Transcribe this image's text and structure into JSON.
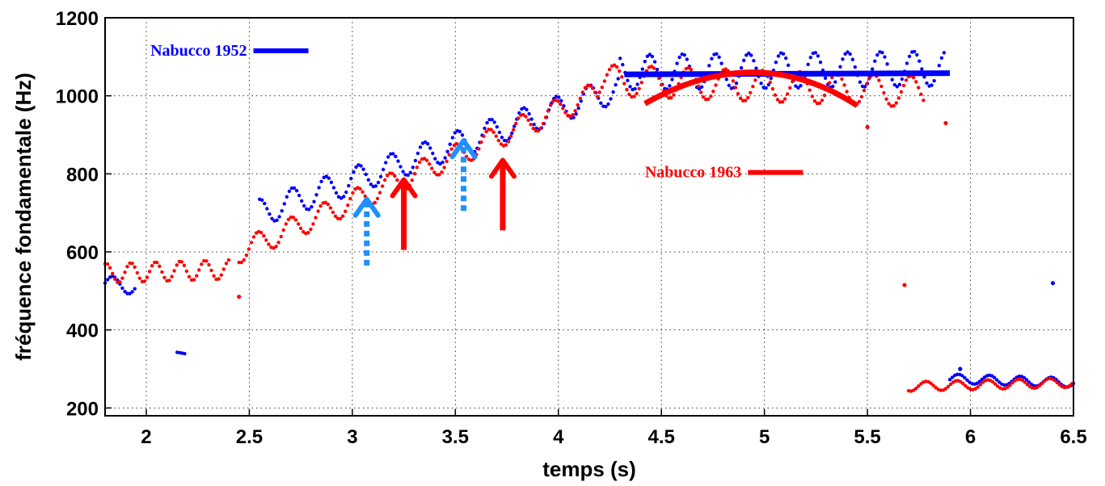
{
  "chart_data": {
    "type": "scatter",
    "title": "",
    "xlabel": "temps (s)",
    "ylabel": "fréquence fondamentale (Hz)",
    "xlim": [
      1.8,
      6.5
    ],
    "ylim": [
      180,
      1200
    ],
    "xticks": [
      2,
      2.5,
      3,
      3.5,
      4,
      4.5,
      5,
      5.5,
      6,
      6.5
    ],
    "xtick_labels": [
      "2",
      "2.5",
      "3",
      "3.5",
      "4",
      "4.5",
      "5",
      "5.5",
      "6",
      "6.5"
    ],
    "yticks": [
      200,
      400,
      600,
      800,
      1000,
      1200
    ],
    "ytick_labels": [
      "200",
      "400",
      "600",
      "800",
      "1000",
      "1200"
    ],
    "grid": true,
    "series": [
      {
        "name": "Nabucco 1952",
        "color": "#0000ff",
        "segments": [
          {
            "x0": 1.8,
            "x1": 1.95,
            "base_start": 520,
            "base_end": 510,
            "amp": 20,
            "period": 0.15
          },
          {
            "x0": 2.15,
            "x1": 2.19,
            "base_start": 340,
            "base_end": 338,
            "amp": 3,
            "period": 0.3
          },
          {
            "x0": 2.55,
            "x1": 4.3,
            "base_start": 700,
            "base_end": 1020,
            "amp": 35,
            "period": 0.16
          },
          {
            "x0": 4.3,
            "x1": 5.88,
            "base_start": 1060,
            "base_end": 1070,
            "amp": 45,
            "period": 0.16
          },
          {
            "x0": 5.9,
            "x1": 6.5,
            "base_start": 275,
            "base_end": 265,
            "amp": 12,
            "period": 0.15
          }
        ],
        "trend": {
          "type": "line",
          "x": [
            4.32,
            5.9
          ],
          "y": [
            1055,
            1058
          ]
        }
      },
      {
        "name": "Nabucco 1963",
        "color": "#ff0000",
        "segments": [
          {
            "x0": 1.8,
            "x1": 2.4,
            "base_start": 545,
            "base_end": 555,
            "amp": 25,
            "period": 0.12
          },
          {
            "x0": 2.45,
            "x1": 4.2,
            "base_start": 600,
            "base_end": 1010,
            "amp": 30,
            "period": 0.16
          },
          {
            "x0": 4.2,
            "x1": 5.78,
            "base_start": 1040,
            "base_end": 1010,
            "amp": 40,
            "period": 0.18
          },
          {
            "x0": 5.7,
            "x1": 6.5,
            "base_start": 255,
            "base_end": 265,
            "amp": 12,
            "period": 0.15
          }
        ],
        "trend": {
          "type": "curve",
          "x": [
            4.42,
            4.95,
            5.45
          ],
          "y": [
            980,
            1060,
            975
          ]
        }
      }
    ],
    "outliers": [
      {
        "x": 5.68,
        "y": 515,
        "series": "Nabucco 1963"
      },
      {
        "x": 6.4,
        "y": 520,
        "series": "Nabucco 1952"
      },
      {
        "x": 5.88,
        "y": 930,
        "series": "Nabucco 1963"
      },
      {
        "x": 5.5,
        "y": 920,
        "series": "Nabucco 1963"
      },
      {
        "x": 2.45,
        "y": 485,
        "series": "Nabucco 1963"
      },
      {
        "x": 5.95,
        "y": 300,
        "series": "Nabucco 1952"
      }
    ],
    "annotations": [
      {
        "type": "arrow",
        "style": "dotted",
        "color": "#1e90ff",
        "x": 3.07,
        "y_from": 565,
        "y_to": 735
      },
      {
        "type": "arrow",
        "style": "solid",
        "color": "#ff0000",
        "x": 3.25,
        "y_from": 605,
        "y_to": 785
      },
      {
        "type": "arrow",
        "style": "dotted",
        "color": "#1e90ff",
        "x": 3.54,
        "y_from": 705,
        "y_to": 885
      },
      {
        "type": "arrow",
        "style": "solid",
        "color": "#ff0000",
        "x": 3.73,
        "y_from": 655,
        "y_to": 835
      }
    ],
    "legend": [
      {
        "label": "Nabucco 1952",
        "color": "#0000ff",
        "x": 2.02,
        "y": 1103
      },
      {
        "label": "Nabucco 1963",
        "color": "#ff0000",
        "x": 4.42,
        "y": 791
      }
    ]
  }
}
